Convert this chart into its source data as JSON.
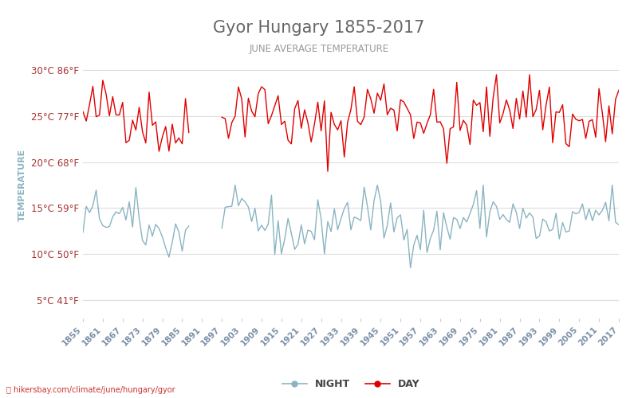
{
  "title": "Gyor Hungary 1855-2017",
  "subtitle": "JUNE AVERAGE TEMPERATURE",
  "ylabel": "TEMPERATURE",
  "xlabel_years": [
    1855,
    1861,
    1867,
    1873,
    1879,
    1885,
    1891,
    1897,
    1903,
    1909,
    1915,
    1921,
    1927,
    1933,
    1939,
    1945,
    1951,
    1957,
    1963,
    1969,
    1975,
    1981,
    1987,
    1993,
    1999,
    2005,
    2011,
    2017
  ],
  "yticks_c": [
    5,
    10,
    15,
    20,
    25,
    30
  ],
  "yticks_f": [
    41,
    50,
    59,
    68,
    77,
    86
  ],
  "ylim": [
    3,
    32
  ],
  "day_color": "#e00000",
  "night_color": "#8ab4c2",
  "background_color": "#ffffff",
  "title_color": "#666666",
  "subtitle_color": "#999999",
  "ylabel_color": "#8ab4c2",
  "ytick_color": "#aa3333",
  "xtick_color": "#7a8fa6",
  "watermark": "hikersbay.com/climate/june/hungary/gyor",
  "footer_color": "#cc3333",
  "legend_night": "NIGHT",
  "legend_day": "DAY"
}
